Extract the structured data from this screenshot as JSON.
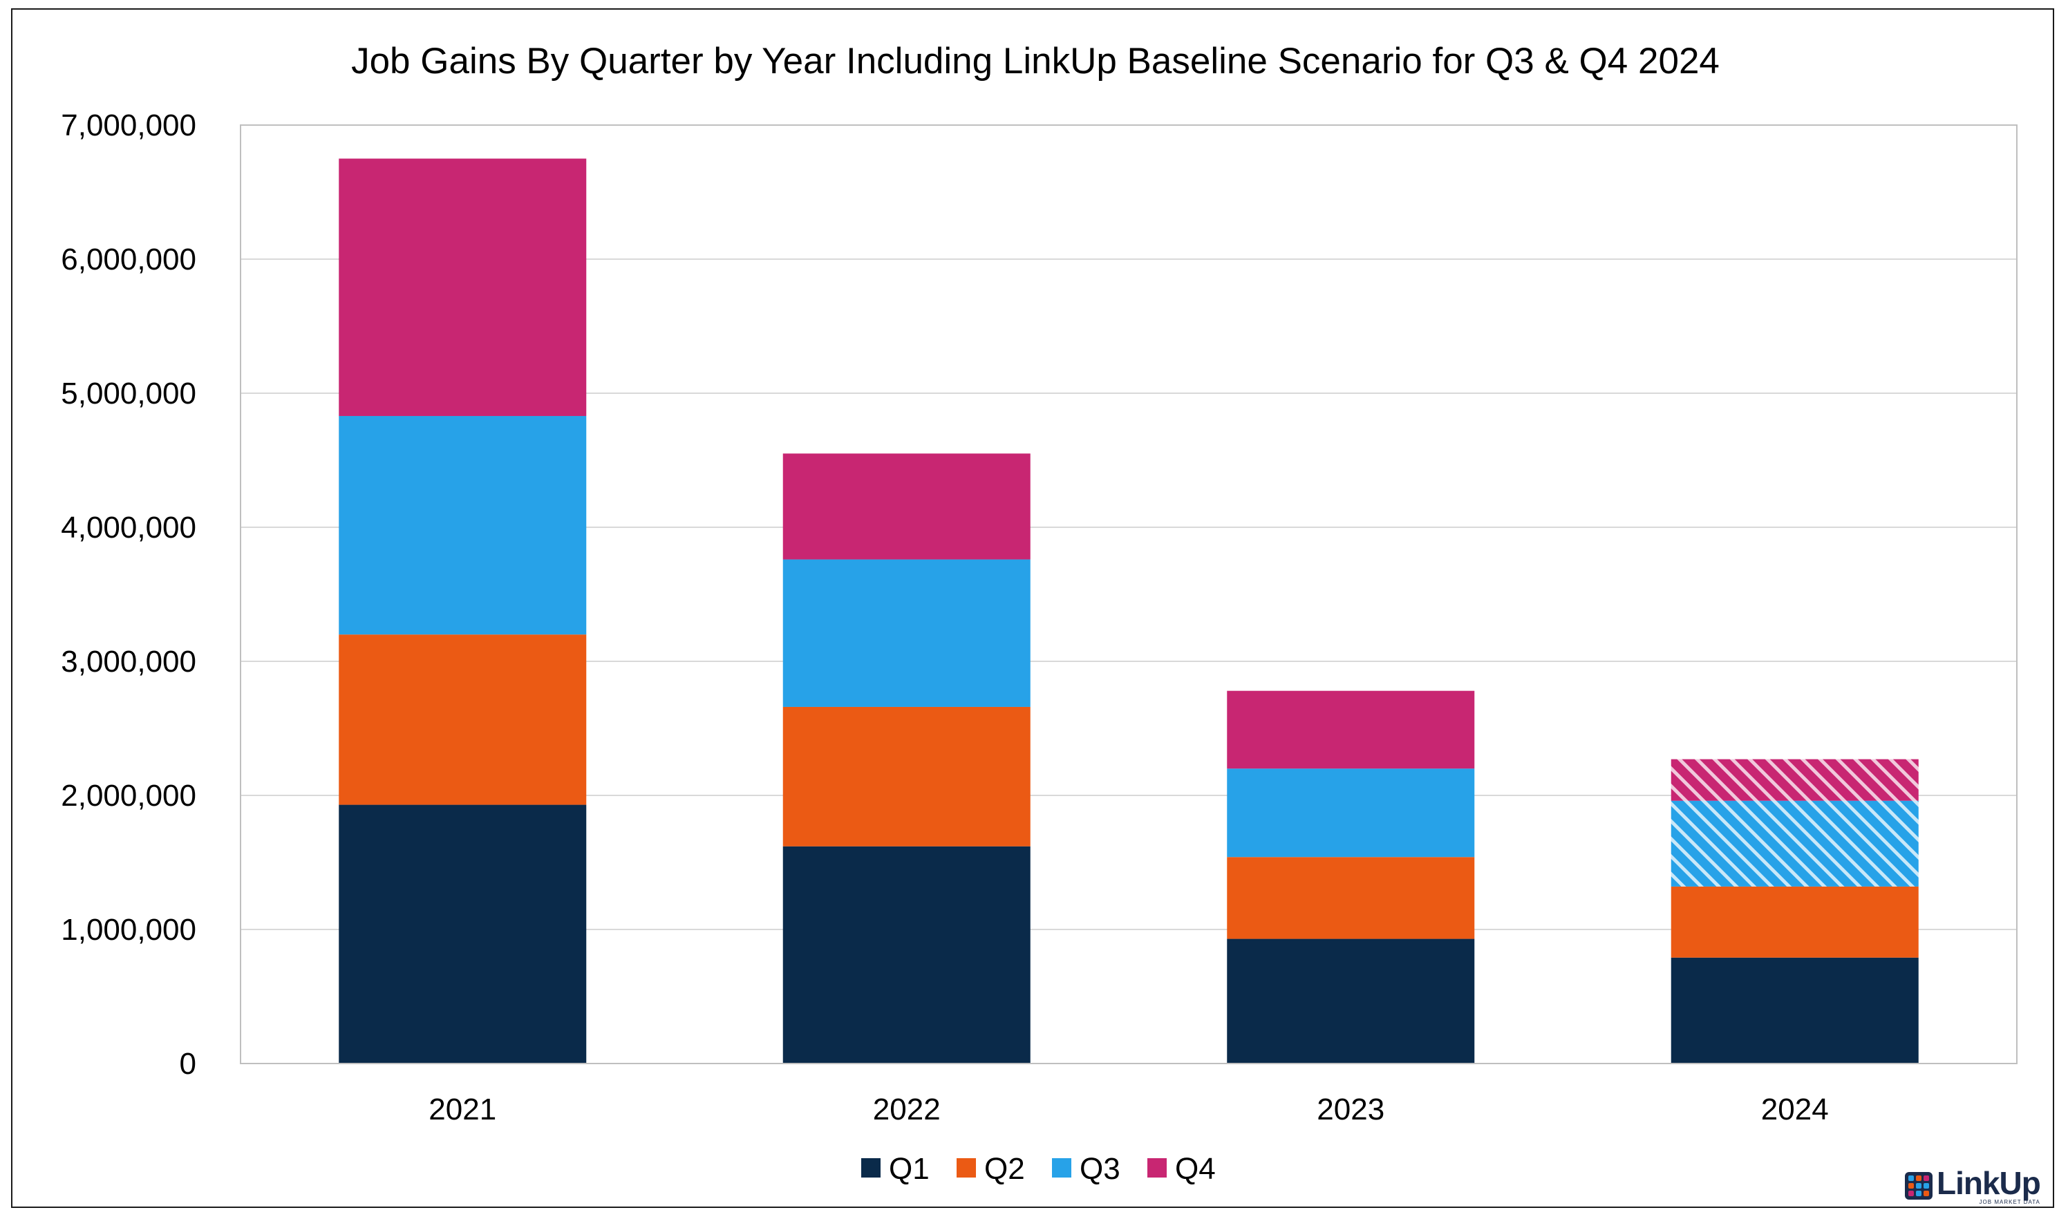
{
  "chart_data": {
    "type": "bar",
    "stacked": true,
    "title": "Job Gains By Quarter by Year Including LinkUp Baseline Scenario for Q3 & Q4 2024",
    "xlabel": "",
    "ylabel": "",
    "categories": [
      "2021",
      "2022",
      "2023",
      "2024"
    ],
    "ylim": [
      0,
      7000000
    ],
    "yticks": [
      0,
      1000000,
      2000000,
      3000000,
      4000000,
      5000000,
      6000000,
      7000000
    ],
    "ytick_labels": [
      "0",
      "1,000,000",
      "2,000,000",
      "3,000,000",
      "4,000,000",
      "5,000,000",
      "6,000,000",
      "7,000,000"
    ],
    "grid": true,
    "legend_position": "bottom",
    "series": [
      {
        "name": "Q1",
        "color": "#0a2a4a",
        "values": [
          1930000,
          1620000,
          930000,
          790000
        ],
        "hatched": [
          false,
          false,
          false,
          false
        ]
      },
      {
        "name": "Q2",
        "color": "#eb5a14",
        "values": [
          1270000,
          1040000,
          610000,
          530000
        ],
        "hatched": [
          false,
          false,
          false,
          false
        ]
      },
      {
        "name": "Q3",
        "color": "#27a2e8",
        "values": [
          1630000,
          1100000,
          660000,
          640000
        ],
        "hatched": [
          false,
          false,
          false,
          true
        ]
      },
      {
        "name": "Q4",
        "color": "#c82672",
        "values": [
          1920000,
          790000,
          580000,
          310000
        ],
        "hatched": [
          false,
          false,
          false,
          true
        ]
      }
    ]
  },
  "logo": {
    "name": "LinkUp",
    "tagline": "JOB MARKET DATA",
    "icon": "grid-squares-icon"
  }
}
